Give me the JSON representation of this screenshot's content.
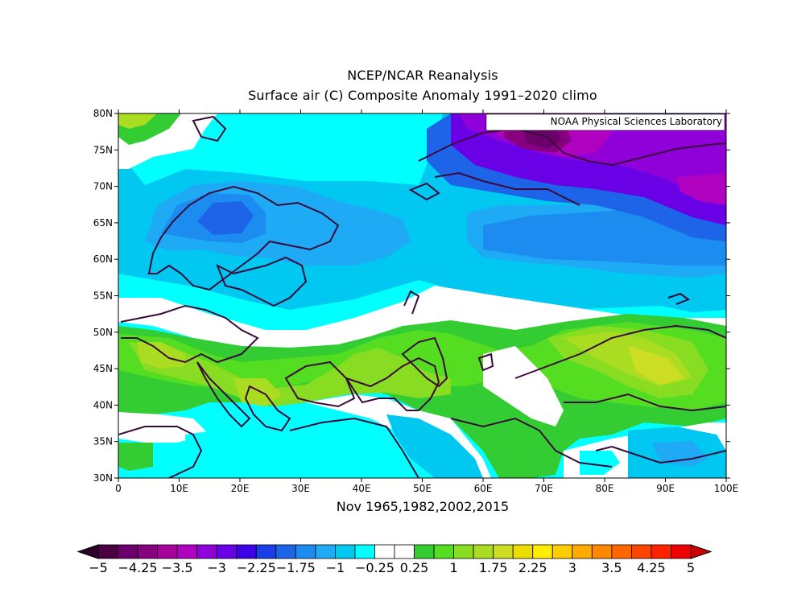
{
  "titles": {
    "line1": "NCEP/NCAR Reanalysis",
    "line2": "Surface air (C) Composite Anomaly 1991-2020 climo",
    "xlabel": "Nov 1965,1982,2002,2015"
  },
  "badge": "NOAA Physical Sciences Laboratory",
  "map": {
    "lon_range": [
      0,
      100
    ],
    "lat_range": [
      30,
      80
    ],
    "x_ticks": [
      "0",
      "10E",
      "20E",
      "30E",
      "40E",
      "50E",
      "60E",
      "70E",
      "80E",
      "90E",
      "100E"
    ],
    "y_ticks": [
      "30N",
      "35N",
      "40N",
      "45N",
      "50N",
      "55N",
      "60N",
      "65N",
      "70N",
      "75N",
      "80N"
    ]
  },
  "colorbar": {
    "labels": [
      "-5",
      "-4.25",
      "-3.5",
      "-3",
      "-2.25",
      "-1.75",
      "-1",
      "-0.25",
      "0.25",
      "1",
      "1.75",
      "2.25",
      "3",
      "3.5",
      "4.25",
      "5"
    ],
    "colors": [
      "#4a0040",
      "#6c006a",
      "#870080",
      "#a5009c",
      "#b000c0",
      "#9000d8",
      "#6a00e6",
      "#3e00e6",
      "#1a3ee6",
      "#1e64e8",
      "#1c8cf0",
      "#1eaaf4",
      "#00c8f0",
      "#00ffff",
      "#ffffff",
      "#ffffff",
      "#33cc33",
      "#55dd22",
      "#88dd22",
      "#aadd22",
      "#ccdd22",
      "#eedd00",
      "#ffee00",
      "#ffcc00",
      "#ffaa00",
      "#ff8800",
      "#ff6600",
      "#ff4400",
      "#ff2200",
      "#ee0000"
    ],
    "arrow_left": "#2c0028",
    "arrow_right": "#cc0000"
  }
}
